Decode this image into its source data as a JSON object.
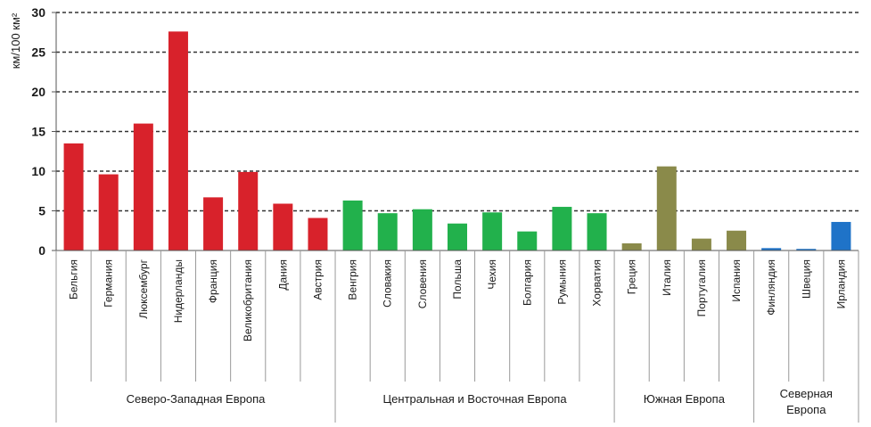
{
  "chart_data": {
    "type": "bar",
    "title": "",
    "ylabel": "км/100 км²",
    "xlabel": "",
    "ylim": [
      0,
      30
    ],
    "y_ticks": [
      0,
      5,
      10,
      15,
      20,
      25,
      30
    ],
    "grid": true,
    "grid_style": "dashed horizontal",
    "legend": "none",
    "categories": [
      "Бельгия",
      "Германия",
      "Люксембург",
      "Нидерланды",
      "Франция",
      "Великобритания",
      "Дания",
      "Австрия",
      "Венгрия",
      "Словакия",
      "Словения",
      "Польша",
      "Чехия",
      "Болгария",
      "Румыния",
      "Хорватия",
      "Греция",
      "Италия",
      "Португалия",
      "Испания",
      "Финляндия",
      "Швеция",
      "Ирландия"
    ],
    "values": [
      13.5,
      9.6,
      16.0,
      27.6,
      6.7,
      9.9,
      5.9,
      4.1,
      6.3,
      4.7,
      5.2,
      3.4,
      4.8,
      2.4,
      5.5,
      4.7,
      0.9,
      10.6,
      1.5,
      2.5,
      0.3,
      0.2,
      3.6
    ],
    "groups": [
      {
        "name": "Северо-Западная Европа",
        "start": 0,
        "end": 7,
        "color": "#d8222b"
      },
      {
        "name": "Центральная и Восточная Европа",
        "start": 8,
        "end": 15,
        "color": "#22b14c"
      },
      {
        "name": "Южная Европа",
        "start": 16,
        "end": 19,
        "color": "#8a8a4a"
      },
      {
        "name": "Северная Европа",
        "name_lines": [
          "Северная",
          "Европа"
        ],
        "start": 20,
        "end": 22,
        "color": "#1f73c8"
      }
    ]
  }
}
